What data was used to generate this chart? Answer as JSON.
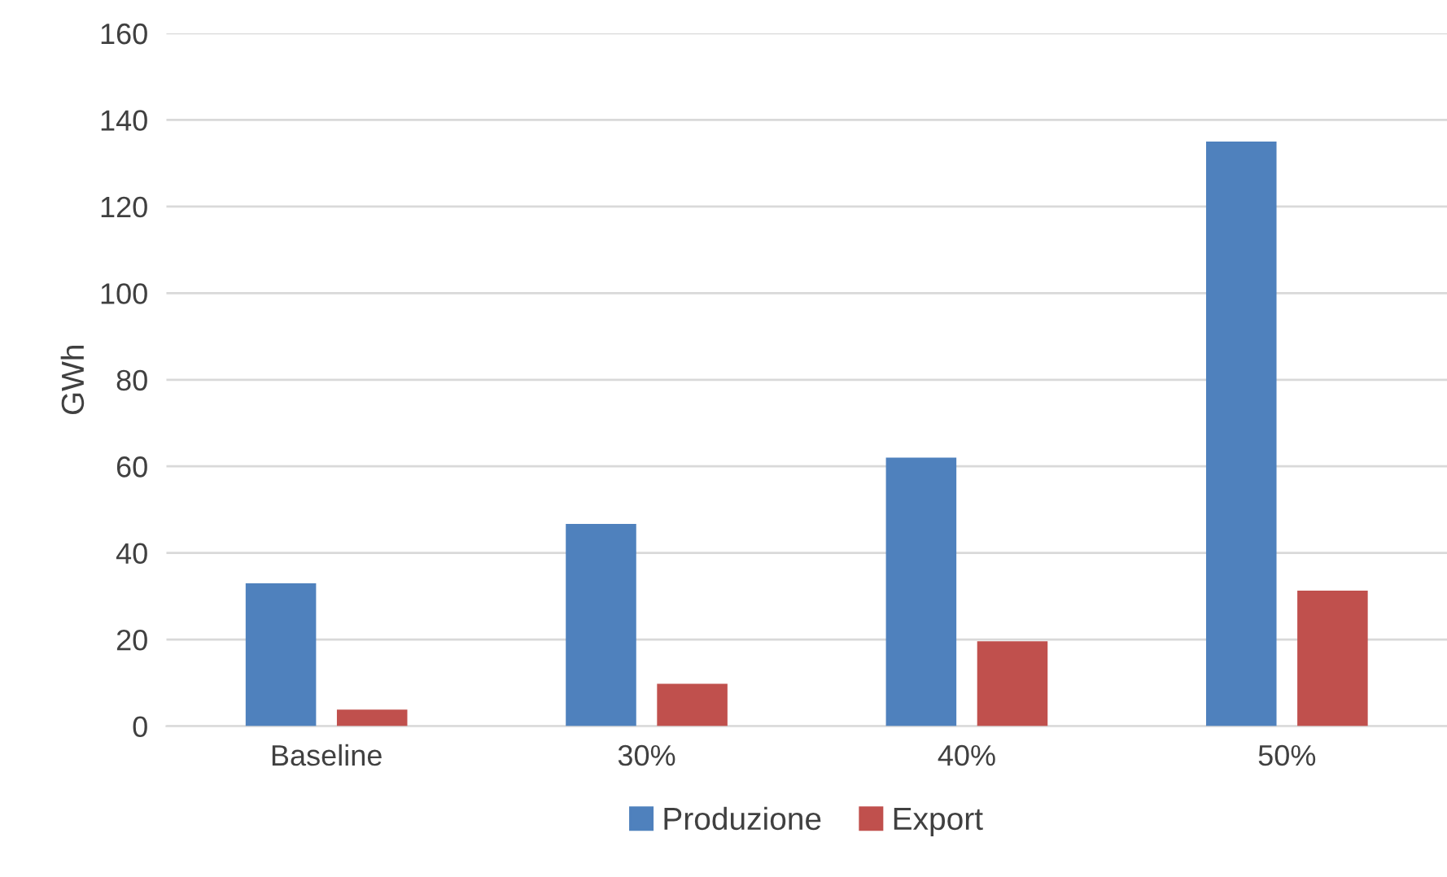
{
  "chart_data": {
    "type": "bar",
    "ylabel": "GWh",
    "categories": [
      "Baseline",
      "30%",
      "40%",
      "50%"
    ],
    "series": [
      {
        "name": "Produzione",
        "color": "#4f81bd",
        "values": [
          33,
          46.7,
          62,
          135
        ]
      },
      {
        "name": "Export",
        "color": "#c0504d",
        "values": [
          3.8,
          9.8,
          19.6,
          31.3
        ]
      }
    ],
    "ylim": [
      0,
      160
    ],
    "yticks": [
      0,
      20,
      40,
      60,
      80,
      100,
      120,
      140,
      160
    ],
    "grid": "y",
    "legend": "bottom"
  }
}
